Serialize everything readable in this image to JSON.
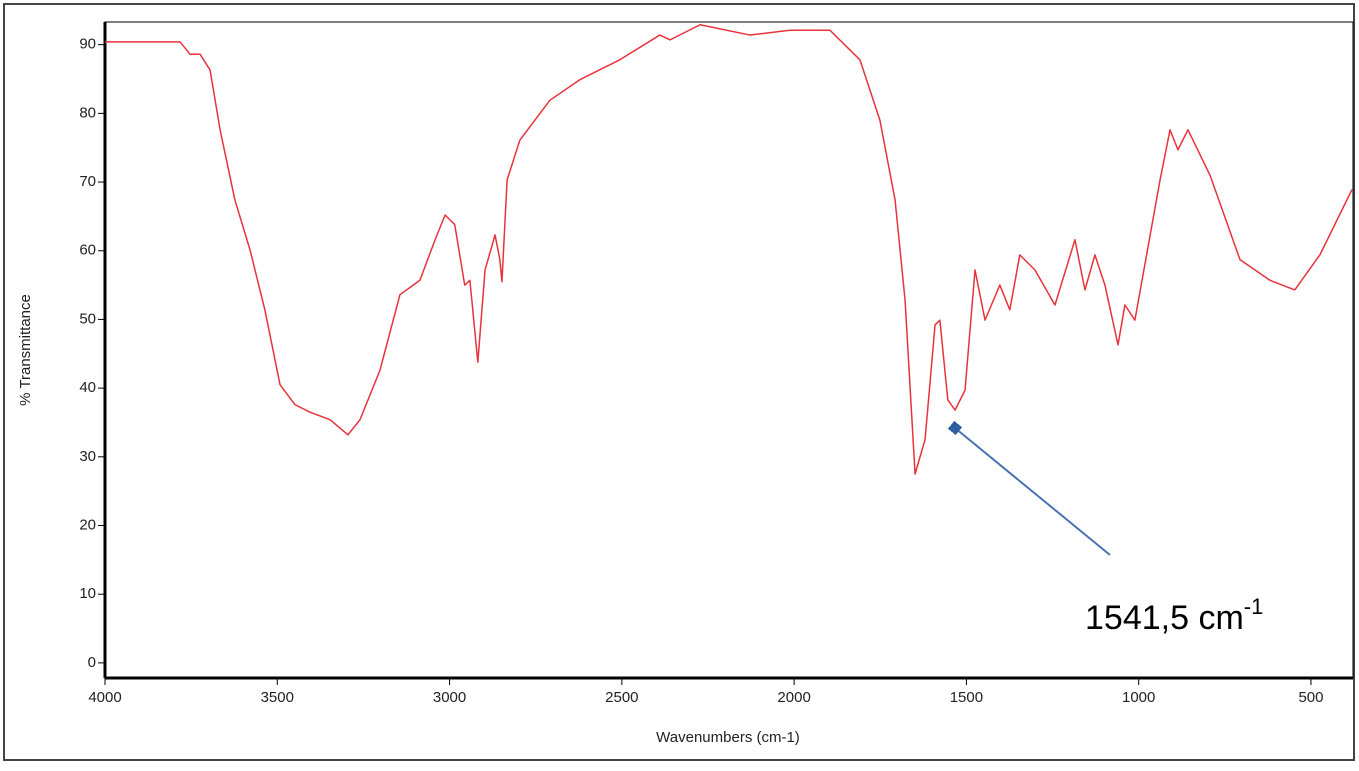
{
  "chart_data": {
    "type": "line",
    "x_label": "Wavenumbers (cm-1)",
    "y_label": "% Transmittance",
    "annotation": {
      "text": "1541,5 cm",
      "superscript": "-1"
    },
    "xlim": [
      4000,
      378
    ],
    "xticks": [
      4000,
      3500,
      3000,
      2500,
      2000,
      1500,
      1000,
      500
    ],
    "ylim": [
      -2.2,
      93.3
    ],
    "yticks": [
      0,
      10,
      20,
      30,
      40,
      50,
      60,
      70,
      80,
      90
    ],
    "series": [
      {
        "color": "#e8323c",
        "x": [
          4000,
          3782,
          3753,
          3724,
          3695,
          3666,
          3623,
          3579,
          3536,
          3492,
          3449,
          3405,
          3347,
          3295,
          3260,
          3202,
          3144,
          3086,
          3042,
          3013,
          2985,
          2956,
          2941,
          2918,
          2897,
          2868,
          2854,
          2848,
          2833,
          2796,
          2709,
          2622,
          2506,
          2390,
          2360,
          2273,
          2128,
          2012,
          1896,
          1809,
          1751,
          1707,
          1678,
          1649,
          1620,
          1591,
          1577,
          1554,
          1533,
          1504,
          1475,
          1446,
          1403,
          1374,
          1345,
          1301,
          1243,
          1185,
          1156,
          1127,
          1098,
          1060,
          1040,
          1011,
          938,
          909,
          886,
          857,
          793,
          706,
          619,
          547,
          474,
          381
        ],
        "values": [
          90.4,
          90.4,
          88.6,
          88.6,
          86.3,
          77.6,
          67.4,
          60.1,
          51.4,
          40.5,
          37.6,
          36.5,
          35.4,
          33.2,
          35.4,
          42.6,
          53.6,
          55.7,
          61.6,
          65.2,
          63.8,
          55.0,
          55.7,
          43.8,
          57.2,
          62.3,
          58.7,
          55.5,
          70.3,
          76.1,
          81.9,
          84.9,
          87.8,
          91.4,
          90.7,
          92.9,
          91.4,
          92.1,
          92.1,
          87.8,
          79.0,
          67.4,
          52.8,
          27.5,
          32.5,
          49.2,
          49.9,
          38.3,
          36.8,
          39.7,
          57.2,
          49.9,
          55.0,
          51.4,
          59.4,
          57.2,
          52.1,
          61.6,
          54.3,
          59.4,
          55.0,
          46.3,
          52.1,
          49.9,
          70.3,
          77.6,
          74.7,
          77.6,
          71.0,
          58.7,
          55.7,
          54.3,
          59.4,
          68.9
        ]
      }
    ]
  }
}
